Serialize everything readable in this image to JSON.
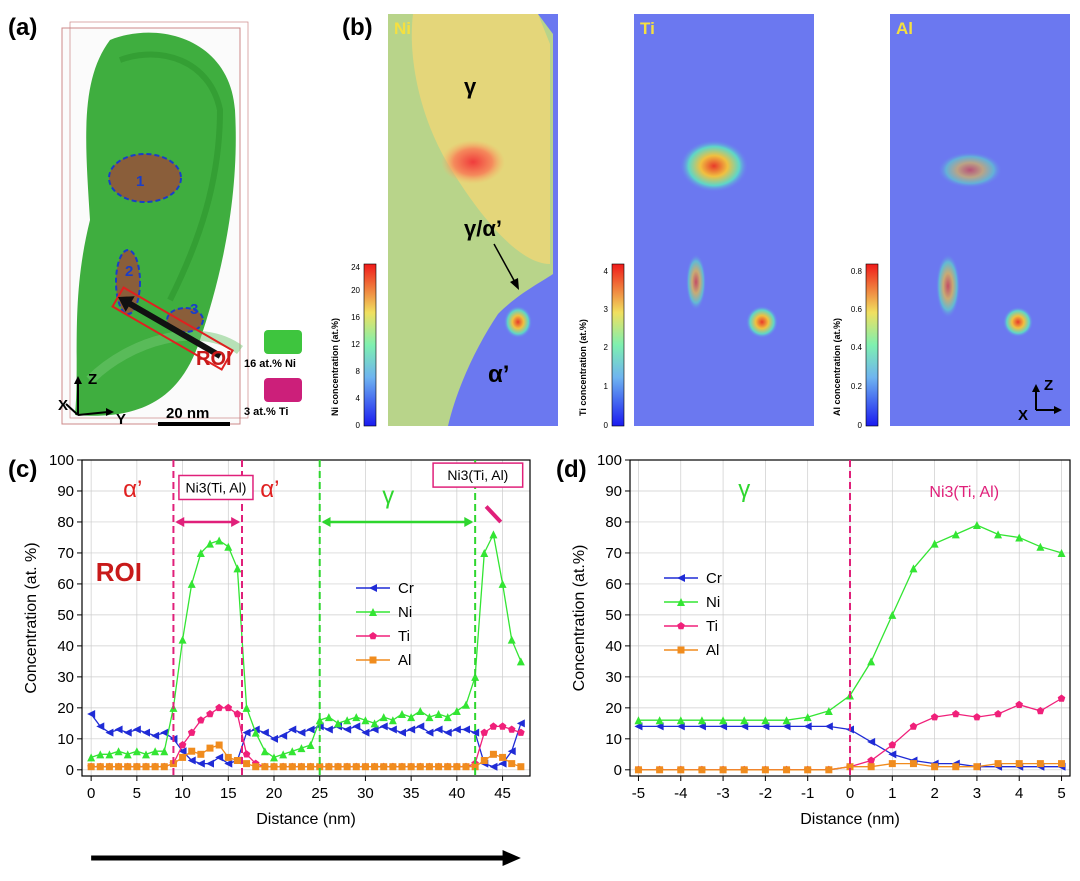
{
  "panels": {
    "a": {
      "label": "(a)",
      "markers": [
        "1",
        "2",
        "3"
      ],
      "roi_label": "ROI",
      "axes": {
        "z": "Z",
        "x": "X",
        "y": "Y"
      },
      "scale_bar": "20 nm",
      "legend": [
        {
          "text": "16 at.% Ni",
          "color": "#3ec53e"
        },
        {
          "text": "3 at.% Ti",
          "color": "#cc1f7a"
        }
      ]
    },
    "b": {
      "label": "(b)",
      "maps": [
        {
          "element": "Ni",
          "colorbar_label": "Ni concentration (at.%)",
          "ticks": [
            "0",
            "4",
            "8",
            "12",
            "16",
            "20",
            "24"
          ]
        },
        {
          "element": "Ti",
          "colorbar_label": "Ti concentration (at.%)",
          "ticks": [
            "0",
            "1",
            "2",
            "3",
            "4"
          ]
        },
        {
          "element": "Al",
          "colorbar_label": "Al concentration (at.%)",
          "ticks": [
            "0",
            "0.2",
            "0.4",
            "0.6",
            "0.8"
          ]
        }
      ],
      "phase_labels": {
        "gamma": "γ",
        "interface": "γ/α’",
        "alpha": "α’"
      },
      "axes": {
        "z": "Z",
        "x": "X"
      }
    },
    "c": {
      "label": "(c)"
    },
    "d": {
      "label": "(d)"
    }
  },
  "chart_data": [
    {
      "type": "line",
      "panel": "c",
      "xlabel": "Distance (nm)",
      "ylabel": "Concentration (at. %)",
      "xlim": [
        -1,
        48
      ],
      "ylim": [
        -2,
        100
      ],
      "xticks": [
        0,
        5,
        10,
        15,
        20,
        25,
        30,
        35,
        40,
        45
      ],
      "yticks": [
        0,
        10,
        20,
        30,
        40,
        50,
        60,
        70,
        80,
        90,
        100
      ],
      "grid": true,
      "legend_position": "center-right",
      "annotations": [
        "α’",
        "Ni3(Ti, Al)",
        "α’",
        "γ",
        "Ni3(Ti, Al)",
        "ROI"
      ],
      "x": [
        0,
        1,
        2,
        3,
        4,
        5,
        6,
        7,
        8,
        9,
        10,
        11,
        12,
        13,
        14,
        15,
        16,
        17,
        18,
        19,
        20,
        21,
        22,
        23,
        24,
        25,
        26,
        27,
        28,
        29,
        30,
        31,
        32,
        33,
        34,
        35,
        36,
        37,
        38,
        39,
        40,
        41,
        42,
        43,
        44,
        45,
        46,
        47
      ],
      "series": [
        {
          "name": "Cr",
          "color": "#1f2bd6",
          "marker": "triangle-left",
          "values": [
            18,
            14,
            12,
            13,
            12,
            13,
            12,
            11,
            12,
            10,
            6,
            3,
            2,
            2,
            4,
            2,
            3,
            12,
            13,
            12,
            10,
            11,
            13,
            12,
            13,
            14,
            13,
            14,
            13,
            14,
            12,
            13,
            14,
            13,
            12,
            13,
            14,
            12,
            13,
            12,
            13,
            13,
            12,
            2,
            1,
            2,
            6,
            15
          ]
        },
        {
          "name": "Ni",
          "color": "#33e533",
          "marker": "triangle-up",
          "values": [
            4,
            5,
            5,
            6,
            5,
            6,
            5,
            6,
            6,
            20,
            42,
            60,
            70,
            73,
            74,
            72,
            65,
            20,
            12,
            6,
            4,
            5,
            6,
            7,
            8,
            16,
            17,
            15,
            16,
            17,
            16,
            15,
            17,
            16,
            18,
            17,
            19,
            17,
            18,
            17,
            19,
            21,
            30,
            70,
            76,
            60,
            42,
            35
          ]
        },
        {
          "name": "Ti",
          "color": "#f0207a",
          "marker": "pentagon",
          "values": [
            1,
            1,
            1,
            1,
            1,
            1,
            1,
            1,
            1,
            2,
            8,
            12,
            16,
            18,
            20,
            20,
            18,
            5,
            2,
            1,
            1,
            1,
            1,
            1,
            1,
            1,
            1,
            1,
            1,
            1,
            1,
            1,
            1,
            1,
            1,
            1,
            1,
            1,
            1,
            1,
            1,
            1,
            2,
            12,
            14,
            14,
            13,
            12
          ]
        },
        {
          "name": "Al",
          "color": "#f08c1e",
          "marker": "square",
          "values": [
            1,
            1,
            1,
            1,
            1,
            1,
            1,
            1,
            1,
            2,
            4,
            6,
            5,
            7,
            8,
            4,
            3,
            2,
            1,
            1,
            1,
            1,
            1,
            1,
            1,
            1,
            1,
            1,
            1,
            1,
            1,
            1,
            1,
            1,
            1,
            1,
            1,
            1,
            1,
            1,
            1,
            1,
            1,
            3,
            5,
            4,
            2,
            1
          ]
        }
      ]
    },
    {
      "type": "line",
      "panel": "d",
      "xlabel": "Distance (nm)",
      "ylabel": "Concentration (at.%)",
      "xlim": [
        -5.2,
        5.2
      ],
      "ylim": [
        -2,
        100
      ],
      "xticks": [
        -5,
        -4,
        -3,
        -2,
        -1,
        0,
        1,
        2,
        3,
        4,
        5
      ],
      "yticks": [
        0,
        10,
        20,
        30,
        40,
        50,
        60,
        70,
        80,
        90,
        100
      ],
      "grid": true,
      "legend_position": "center-left",
      "annotations": [
        "γ",
        "Ni3(Ti, Al)"
      ],
      "x": [
        -5,
        -4.5,
        -4,
        -3.5,
        -3,
        -2.5,
        -2,
        -1.5,
        -1,
        -0.5,
        0,
        0.5,
        1,
        1.5,
        2,
        2.5,
        3,
        3.5,
        4,
        4.5,
        5
      ],
      "series": [
        {
          "name": "Cr",
          "color": "#1f2bd6",
          "marker": "triangle-left",
          "values": [
            14,
            14,
            14,
            14,
            14,
            14,
            14,
            14,
            14,
            14,
            13,
            9,
            5,
            3,
            2,
            2,
            1,
            1,
            1,
            1,
            1
          ]
        },
        {
          "name": "Ni",
          "color": "#33e533",
          "marker": "triangle-up",
          "values": [
            16,
            16,
            16,
            16,
            16,
            16,
            16,
            16,
            17,
            19,
            24,
            35,
            50,
            65,
            73,
            76,
            79,
            76,
            75,
            72,
            70
          ]
        },
        {
          "name": "Ti",
          "color": "#f0207a",
          "marker": "pentagon",
          "values": [
            0,
            0,
            0,
            0,
            0,
            0,
            0,
            0,
            0,
            0,
            1,
            3,
            8,
            14,
            17,
            18,
            17,
            18,
            21,
            19,
            23
          ]
        },
        {
          "name": "Al",
          "color": "#f08c1e",
          "marker": "square",
          "values": [
            0,
            0,
            0,
            0,
            0,
            0,
            0,
            0,
            0,
            0,
            1,
            1,
            2,
            2,
            1,
            1,
            1,
            2,
            2,
            2,
            2
          ]
        }
      ]
    }
  ]
}
